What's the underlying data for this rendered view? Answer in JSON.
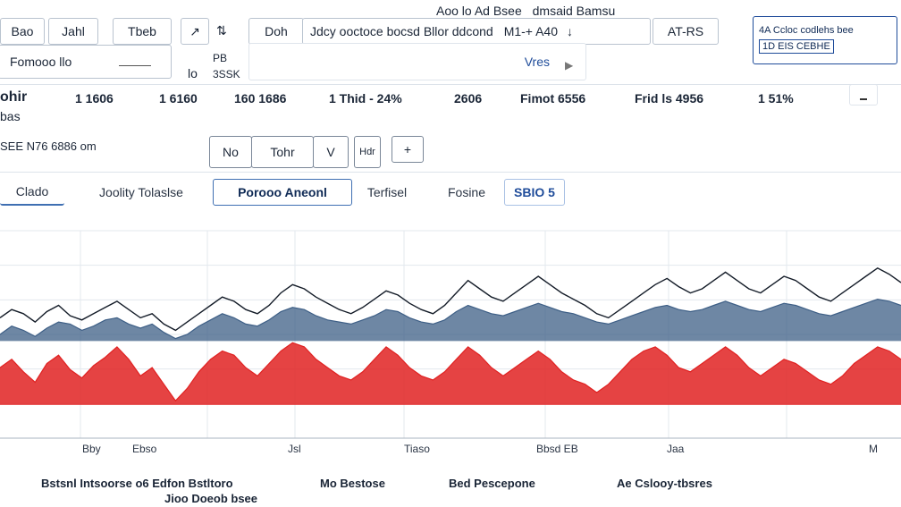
{
  "toolbar": {
    "caption": "Aoo lo Ad Bsee",
    "caption_right": "dmsaid Bamsu",
    "btn_bao": "Bao",
    "btn_jahl": "Jahl",
    "btn_tbeb": "Tbeb",
    "btn_arrow": "↗",
    "btn_sort": "⇅",
    "btn_doh": "Doh",
    "search_value": "Jdcy ooctoce bocsd Bllor ddcond",
    "search_code": "M1-+ A40",
    "arrow_down": "↓",
    "filter_code": "AT-RS",
    "info_line1": "4A Ccloc codlehs bee",
    "info_line2": "1D EIS CEBHE"
  },
  "row2": {
    "select_value": "Fomooo llo",
    "lo_label": "lo",
    "pb_label": "PB",
    "ssk_label": "3SSK",
    "vres_label": "Vres",
    "play": "▶"
  },
  "stats": {
    "label": "ohir",
    "sublabel": "bas",
    "items": [
      "1 1606",
      "1 6160",
      "160 1686",
      "1 Thid - 24%",
      "2606",
      "Fimot 6556",
      "Frid ls 4956",
      "1 51%"
    ]
  },
  "row4": {
    "meta": "SEE N76 6886 om",
    "seg_no": "No",
    "seg_tohr": "Tohr",
    "seg_v": "V",
    "seg_hdr": "Hdr",
    "seg_plus": "+"
  },
  "tabs": {
    "clado": "Clado",
    "joolity": "Joolity Tolaslse",
    "porooo": "Porooo Aneonl",
    "terfisel": "Terfisel",
    "fosine": "Fosine",
    "sbio": "SBIO 5"
  },
  "footer": {
    "legend_1_line1": "Bstsnl Intsoorse o6 Edfon Bstltoro",
    "legend_1_line2": "Jioo Doeob bsee",
    "legend_2": "Mo Bestose",
    "legend_3": "Bed Pescepone",
    "legend_4": "Ae Cslooy-tbsres"
  },
  "colors": {
    "accent": "#1f4c9a",
    "series_blue": "#3e5f86",
    "series_red": "#e02222",
    "series_black": "#141c28"
  },
  "chart_data": {
    "type": "line",
    "title": "",
    "xlabel": "",
    "ylabel": "",
    "grid": true,
    "legend": "bottom",
    "x_ticks": [
      "Bby",
      "Ebso",
      "Jsl",
      "Tiaso",
      "Bbsd EB",
      "Jaa",
      "M"
    ],
    "ylim": [
      0,
      100
    ],
    "series": [
      {
        "name": "",
        "color": "#141c28",
        "values": [
          58,
          62,
          60,
          56,
          61,
          64,
          59,
          57,
          60,
          63,
          66,
          62,
          58,
          60,
          55,
          52,
          56,
          60,
          64,
          68,
          66,
          62,
          60,
          64,
          70,
          74,
          72,
          68,
          65,
          62,
          60,
          63,
          67,
          71,
          69,
          65,
          62,
          60,
          64,
          70,
          76,
          72,
          68,
          66,
          70,
          74,
          78,
          74,
          70,
          67,
          64,
          60,
          58,
          62,
          66,
          70,
          74,
          77,
          73,
          70,
          72,
          76,
          80,
          76,
          72,
          70,
          74,
          78,
          76,
          72,
          68,
          66,
          70,
          74,
          78,
          82,
          79,
          75
        ]
      },
      {
        "name": "",
        "color": "#3e5f86",
        "values": [
          50,
          54,
          52,
          49,
          53,
          56,
          55,
          52,
          54,
          57,
          58,
          55,
          53,
          55,
          51,
          48,
          50,
          54,
          57,
          60,
          58,
          55,
          54,
          57,
          61,
          63,
          62,
          59,
          57,
          56,
          55,
          57,
          59,
          62,
          61,
          58,
          56,
          55,
          57,
          61,
          64,
          62,
          60,
          59,
          61,
          63,
          65,
          63,
          61,
          60,
          58,
          56,
          55,
          57,
          59,
          61,
          63,
          64,
          62,
          61,
          62,
          64,
          66,
          64,
          62,
          61,
          63,
          65,
          64,
          62,
          60,
          59,
          61,
          63,
          65,
          67,
          66,
          64
        ]
      },
      {
        "name": "",
        "color": "#e02222",
        "values": [
          34,
          38,
          32,
          27,
          36,
          40,
          33,
          29,
          35,
          39,
          44,
          38,
          30,
          34,
          26,
          18,
          24,
          32,
          38,
          42,
          40,
          34,
          30,
          36,
          42,
          46,
          44,
          38,
          34,
          30,
          28,
          32,
          38,
          44,
          40,
          34,
          30,
          28,
          32,
          38,
          44,
          40,
          34,
          30,
          34,
          38,
          42,
          38,
          32,
          28,
          26,
          22,
          26,
          32,
          38,
          42,
          44,
          40,
          34,
          32,
          36,
          40,
          44,
          40,
          34,
          30,
          34,
          38,
          36,
          32,
          28,
          26,
          30,
          36,
          40,
          44,
          42,
          38
        ]
      }
    ]
  }
}
